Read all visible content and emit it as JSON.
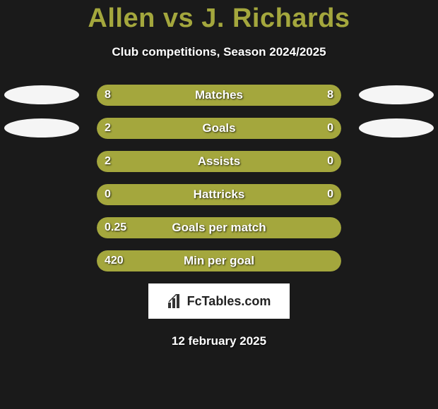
{
  "header": {
    "title": "Allen vs J. Richards",
    "subtitle": "Club competitions, Season 2024/2025"
  },
  "colors": {
    "accent": "#a4a73d",
    "track": "#2b2b2b",
    "bg": "#1a1a1a",
    "oval": "#f5f5f5"
  },
  "stats": [
    {
      "label": "Matches",
      "left_text": "8",
      "right_text": "8",
      "left_pct": 50,
      "right_pct": 50,
      "show_left_oval": true,
      "show_right_oval": true
    },
    {
      "label": "Goals",
      "left_text": "2",
      "right_text": "0",
      "left_pct": 77,
      "right_pct": 23,
      "show_left_oval": true,
      "show_right_oval": true
    },
    {
      "label": "Assists",
      "left_text": "2",
      "right_text": "0",
      "left_pct": 77,
      "right_pct": 23,
      "show_left_oval": false,
      "show_right_oval": false
    },
    {
      "label": "Hattricks",
      "left_text": "0",
      "right_text": "0",
      "left_pct": 50,
      "right_pct": 50,
      "show_left_oval": false,
      "show_right_oval": false
    },
    {
      "label": "Goals per match",
      "left_text": "0.25",
      "right_text": "",
      "left_pct": 100,
      "right_pct": 0,
      "show_left_oval": false,
      "show_right_oval": false
    },
    {
      "label": "Min per goal",
      "left_text": "420",
      "right_text": "",
      "left_pct": 100,
      "right_pct": 0,
      "show_left_oval": false,
      "show_right_oval": false
    }
  ],
  "branding": {
    "logo_text": "FcTables.com"
  },
  "footer": {
    "date": "12 february 2025"
  }
}
